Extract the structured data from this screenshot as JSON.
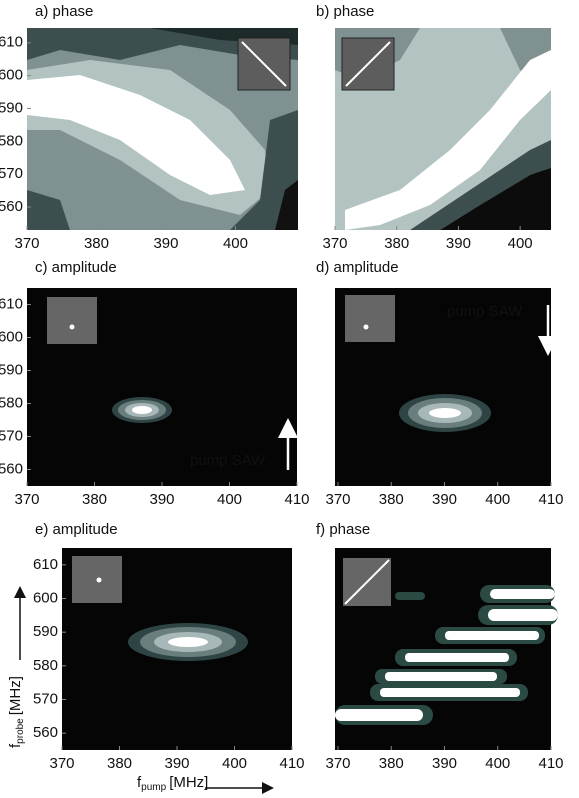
{
  "chart_data": [
    {
      "type": "contour",
      "title": "a) phase",
      "xlim": [
        370,
        409
      ],
      "ylim": [
        553,
        614.5
      ],
      "xticks": [
        370,
        380,
        390,
        400
      ],
      "yticks": [
        560,
        570,
        580,
        590,
        600,
        610
      ]
    },
    {
      "type": "contour",
      "title": "b) phase",
      "xlim": [
        370,
        405
      ],
      "xticks": [
        370,
        380,
        390,
        400
      ]
    },
    {
      "type": "contour",
      "title": "c) amplitude",
      "xlim": [
        370,
        410
      ],
      "ylim": [
        555,
        615
      ],
      "xticks": [
        370,
        380,
        390,
        400,
        410
      ],
      "yticks": [
        560,
        570,
        580,
        590,
        600,
        610
      ],
      "annotation": "pump SAW"
    },
    {
      "type": "contour",
      "title": "d) amplitude",
      "xlim": [
        370,
        410
      ],
      "xticks": [
        370,
        380,
        390,
        400,
        410
      ],
      "annotation": "pump SAW"
    },
    {
      "type": "contour",
      "title": "e) amplitude",
      "xlim": [
        370,
        410
      ],
      "ylim": [
        555,
        615
      ],
      "xticks": [
        370,
        380,
        390,
        400,
        410
      ],
      "yticks": [
        560,
        570,
        580,
        590,
        600,
        610
      ],
      "xlabel": {
        "symbol": "f",
        "sub": "pump",
        "unit": "[MHz]"
      },
      "ylabel": {
        "symbol": "f",
        "sub": "probe",
        "unit": "[MHz]"
      }
    },
    {
      "type": "contour",
      "title": "f) phase",
      "xlim": [
        370,
        410
      ],
      "xticks": [
        370,
        380,
        390,
        400,
        410
      ]
    }
  ]
}
